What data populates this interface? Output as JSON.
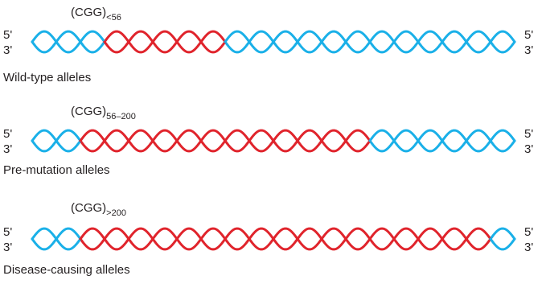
{
  "rows": [
    {
      "label": "(CGG)",
      "subscript": "<56",
      "left_top": "5'",
      "left_bottom": "3'",
      "right_top": "5'",
      "right_bottom": "3'",
      "caption": "Wild-type alleles"
    },
    {
      "label": "(CGG)",
      "subscript": "56–200",
      "left_top": "5'",
      "left_bottom": "3'",
      "right_top": "5'",
      "right_bottom": "3'",
      "caption": "Pre-mutation alleles"
    },
    {
      "label": "(CGG)",
      "subscript": ">200",
      "left_top": "5'",
      "left_bottom": "3'",
      "right_top": "5'",
      "right_bottom": "3'",
      "caption": "Disease-causing alleles"
    }
  ]
}
